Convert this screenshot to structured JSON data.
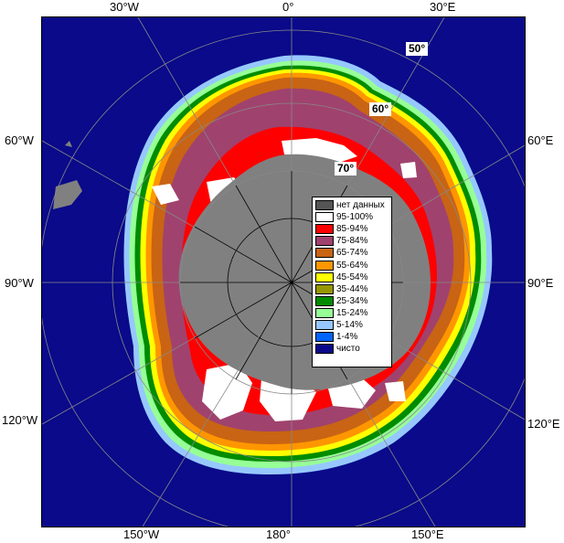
{
  "map": {
    "top_labels": [
      "30°W",
      "0°",
      "30°E"
    ],
    "left_labels": [
      "60°W",
      "90°W",
      "120°W"
    ],
    "right_labels": [
      "60°E",
      "90°E",
      "120°E"
    ],
    "bottom_labels": [
      "150°W",
      "180°",
      "150°E"
    ],
    "lat_labels": [
      "50°",
      "60°",
      "70°"
    ]
  },
  "legend": {
    "items": [
      {
        "label": "нет данных",
        "color": "#555555"
      },
      {
        "label": "95-100%",
        "color": "#ffffff"
      },
      {
        "label": "85-94%",
        "color": "#ff0000"
      },
      {
        "label": "75-84%",
        "color": "#a0426e"
      },
      {
        "label": "65-74%",
        "color": "#c86414"
      },
      {
        "label": "55-64%",
        "color": "#ff9600"
      },
      {
        "label": "45-54%",
        "color": "#ffff00"
      },
      {
        "label": "35-44%",
        "color": "#969600"
      },
      {
        "label": "25-34%",
        "color": "#008c00"
      },
      {
        "label": "15-24%",
        "color": "#96ff96"
      },
      {
        "label": "5-14%",
        "color": "#96c8ff"
      },
      {
        "label": "1-4%",
        "color": "#0064ff"
      },
      {
        "label": "чисто",
        "color": "#0a0a8a"
      }
    ]
  },
  "colors": {
    "ocean": "#0a0a8a",
    "land": "#808080",
    "grid": "#888888"
  }
}
